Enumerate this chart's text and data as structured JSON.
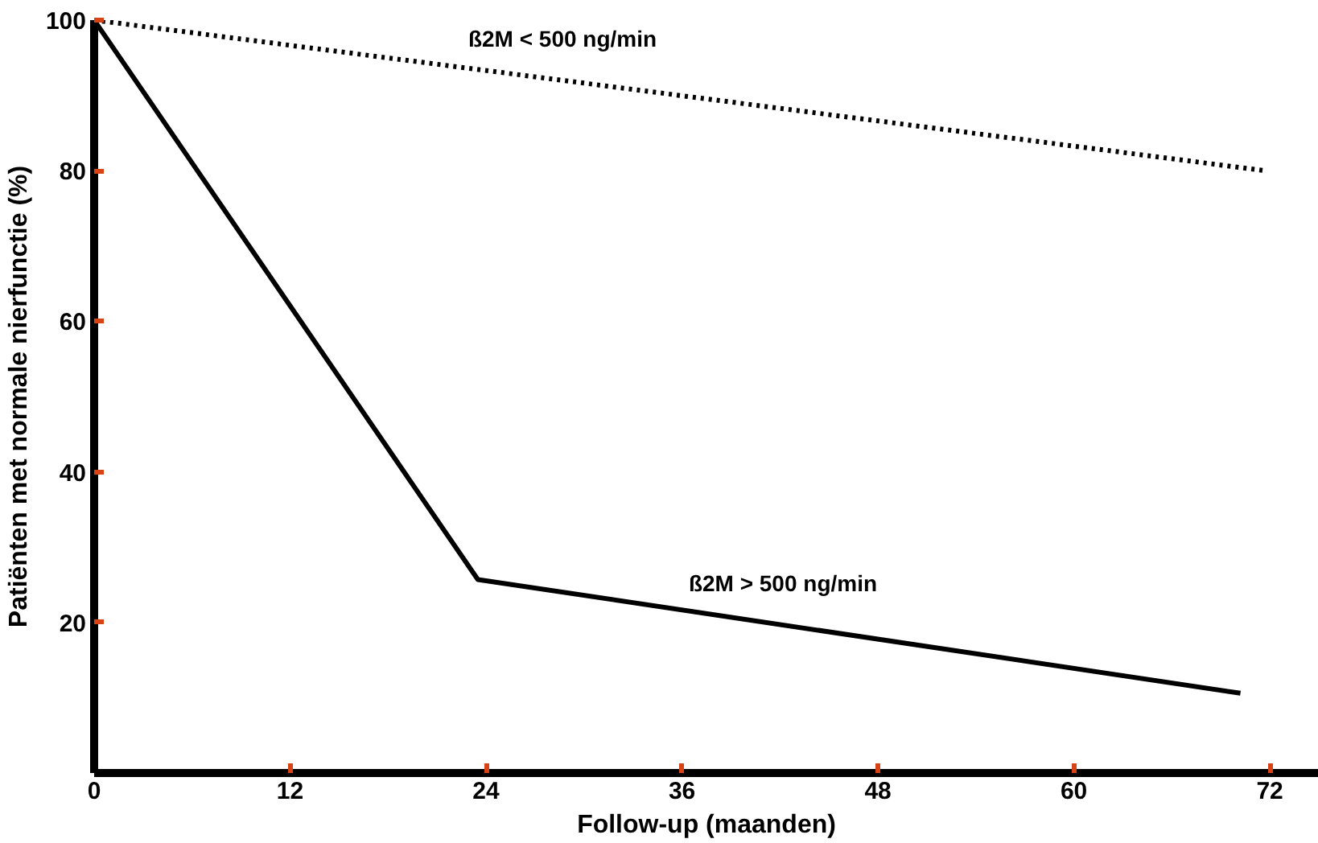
{
  "chart_data": {
    "type": "line",
    "xlabel": "Follow-up (maanden)",
    "ylabel": "Patiënten met normale nierfunctie (%)",
    "series": [
      {
        "name": "ß2M < 500 ng/min",
        "color": "#000000",
        "line_style": "dotted",
        "x": [
          0,
          71.7
        ],
        "values": [
          100,
          80
        ]
      },
      {
        "name": "ß2M > 500 ng/min",
        "color": "#000000",
        "line_style": "solid",
        "x": [
          0,
          23.5,
          70.2
        ],
        "values": [
          100,
          25.7,
          10.6
        ]
      }
    ],
    "xlim": [
      0,
      75
    ],
    "xticks": [
      0,
      12,
      24,
      36,
      48,
      60,
      72
    ],
    "ylim": [
      0,
      100
    ],
    "yticks": [
      20,
      40,
      60,
      80,
      100
    ],
    "grid": false,
    "legend": false,
    "marker": "none"
  }
}
